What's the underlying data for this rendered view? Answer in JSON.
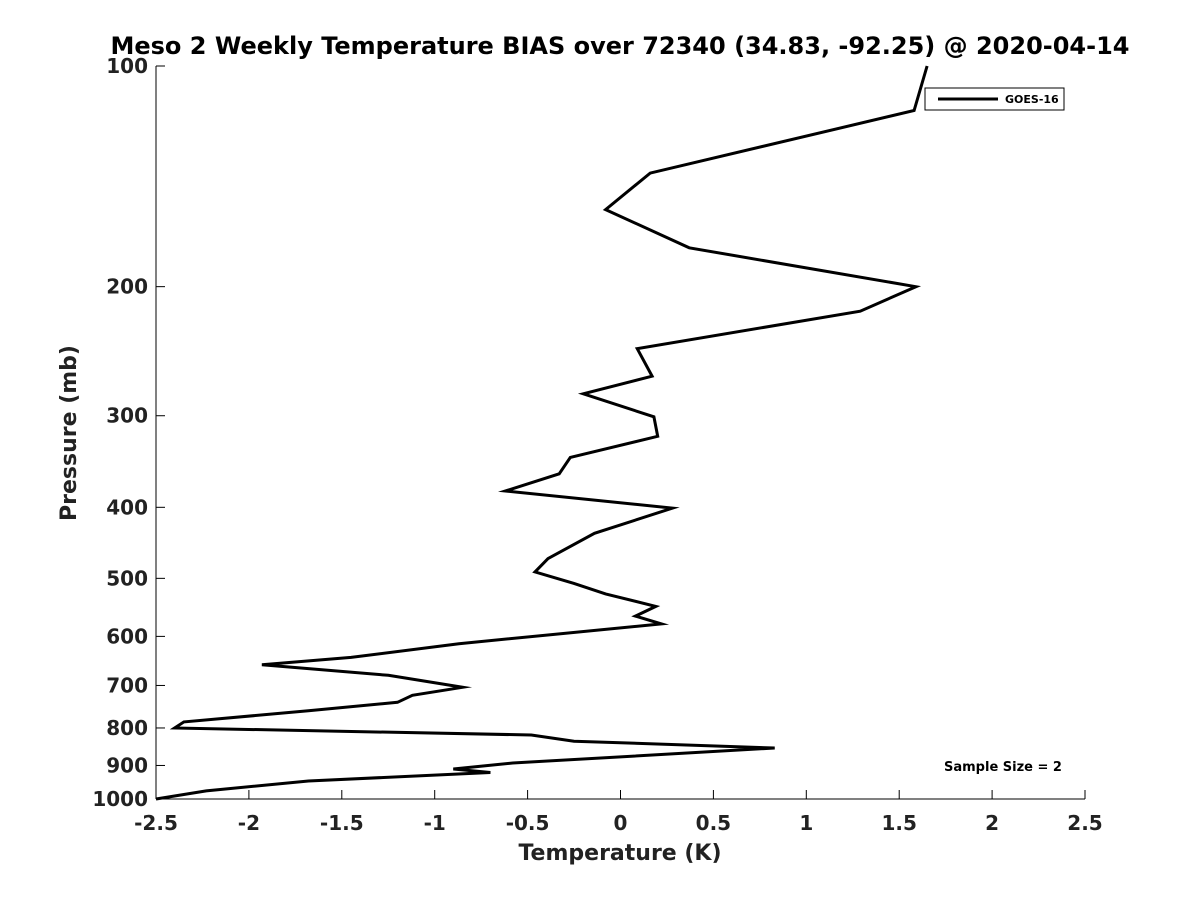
{
  "chart_data": {
    "type": "line",
    "title": "Meso 2 Weekly Temperature BIAS over 72340 (34.83, -92.25) @ 2020-04-14",
    "xlabel": "Temperature (K)",
    "ylabel": "Pressure (mb)",
    "xlim": [
      -2.5,
      2.5
    ],
    "ylim": [
      1000,
      100
    ],
    "y_scale": "log",
    "x_ticks": [
      -2.5,
      -2,
      -1.5,
      -1,
      -0.5,
      0,
      0.5,
      1,
      1.5,
      2,
      2.5
    ],
    "x_tick_labels": [
      "-2.5",
      "-2",
      "-1.5",
      "-1",
      "-0.5",
      "0",
      "0.5",
      "1",
      "1.5",
      "2",
      "2.5"
    ],
    "y_ticks": [
      100,
      200,
      300,
      400,
      500,
      600,
      700,
      800,
      900,
      1000
    ],
    "y_tick_labels": [
      "100",
      "200",
      "300",
      "400",
      "500",
      "600",
      "700",
      "800",
      "900",
      "1000"
    ],
    "grid": false,
    "legend_position": "top-right",
    "annotation": "Sample Size = 2",
    "series": [
      {
        "name": "GOES-16",
        "color": "#000000",
        "points": [
          {
            "x": 1.65,
            "y": 100
          },
          {
            "x": 1.58,
            "y": 115
          },
          {
            "x": 0.16,
            "y": 140
          },
          {
            "x": -0.08,
            "y": 157
          },
          {
            "x": 0.37,
            "y": 177
          },
          {
            "x": 1.59,
            "y": 200
          },
          {
            "x": 1.29,
            "y": 216
          },
          {
            "x": 0.09,
            "y": 243
          },
          {
            "x": 0.17,
            "y": 265
          },
          {
            "x": -0.2,
            "y": 280
          },
          {
            "x": 0.18,
            "y": 301
          },
          {
            "x": 0.2,
            "y": 320
          },
          {
            "x": -0.27,
            "y": 342
          },
          {
            "x": -0.33,
            "y": 360
          },
          {
            "x": -0.62,
            "y": 380
          },
          {
            "x": 0.28,
            "y": 401
          },
          {
            "x": -0.14,
            "y": 434
          },
          {
            "x": -0.39,
            "y": 470
          },
          {
            "x": -0.46,
            "y": 490
          },
          {
            "x": -0.25,
            "y": 508
          },
          {
            "x": -0.08,
            "y": 525
          },
          {
            "x": 0.19,
            "y": 546
          },
          {
            "x": 0.08,
            "y": 563
          },
          {
            "x": 0.22,
            "y": 577
          },
          {
            "x": -0.87,
            "y": 614
          },
          {
            "x": -1.45,
            "y": 641
          },
          {
            "x": -1.93,
            "y": 656
          },
          {
            "x": -1.25,
            "y": 678
          },
          {
            "x": -0.85,
            "y": 704
          },
          {
            "x": -1.12,
            "y": 722
          },
          {
            "x": -1.2,
            "y": 738
          },
          {
            "x": -1.68,
            "y": 758
          },
          {
            "x": -2.35,
            "y": 785
          },
          {
            "x": -2.4,
            "y": 800
          },
          {
            "x": -0.48,
            "y": 818
          },
          {
            "x": -0.25,
            "y": 834
          },
          {
            "x": 0.83,
            "y": 852
          },
          {
            "x": -0.58,
            "y": 893
          },
          {
            "x": -0.9,
            "y": 910
          },
          {
            "x": -0.7,
            "y": 920
          },
          {
            "x": -1.68,
            "y": 945
          },
          {
            "x": -2.23,
            "y": 975
          },
          {
            "x": -2.5,
            "y": 1000
          }
        ]
      }
    ]
  }
}
